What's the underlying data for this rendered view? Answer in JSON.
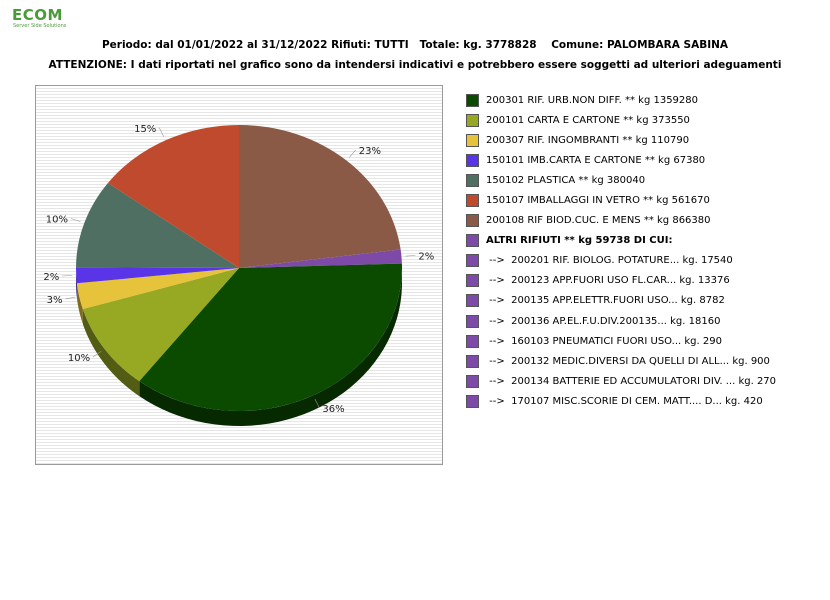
{
  "logo": {
    "text": "ECOM",
    "sub": "Server Side Solutions"
  },
  "header": {
    "line1": "Periodo: dal 01/01/2022 al 31/12/2022 Rifiuti: TUTTI   Totale: kg. 3778828    Comune: PALOMBARA SABINA",
    "line2": "ATTENZIONE: I dati riportati nel grafico sono da intendersi indicativi e potrebbero essere soggetti ad ulteriori adeguamenti"
  },
  "chart_data": {
    "type": "pie",
    "title": "",
    "start_angle_deg": 90,
    "direction": "clockwise",
    "slices": [
      {
        "label": "200108 RIF BIOD.CUC. E MENS ** kg 866380",
        "value": 866380,
        "pct_label": "23%",
        "color": "#8b5a46"
      },
      {
        "label": "ALTRI RIFIUTI ** kg 59738 DI CUI:",
        "value": 59738,
        "pct_label": "2%",
        "color": "#7d4aa8"
      },
      {
        "label": "200301 RIF. URB.NON DIFF. ** kg 1359280",
        "value": 1359280,
        "pct_label": "36%",
        "color": "#0b4b00"
      },
      {
        "label": "200101 CARTA E CARTONE ** kg 373550",
        "value": 373550,
        "pct_label": "10%",
        "color": "#97a823"
      },
      {
        "label": "200307 RIF. INGOMBRANTI ** kg 110790",
        "value": 110790,
        "pct_label": "3%",
        "color": "#e6c33a"
      },
      {
        "label": "150101 IMB.CARTA E CARTONE ** kg 67380",
        "value": 67380,
        "pct_label": "2%",
        "color": "#5a35e8"
      },
      {
        "label": "150102 PLASTICA ** kg 380040",
        "value": 380040,
        "pct_label": "10%",
        "color": "#4f6f62"
      },
      {
        "label": "150107 IMBALLAGGI IN VETRO ** kg 561670",
        "value": 561670,
        "pct_label": "15%",
        "color": "#c04a2e"
      }
    ]
  },
  "legend": [
    {
      "text": "200301 RIF. URB.NON DIFF. ** kg 1359280",
      "color": "#0b4b00",
      "bold": false
    },
    {
      "text": "200101 CARTA E CARTONE ** kg 373550",
      "color": "#97a823",
      "bold": false
    },
    {
      "text": "200307 RIF. INGOMBRANTI ** kg 110790",
      "color": "#e6c33a",
      "bold": false
    },
    {
      "text": "150101 IMB.CARTA E CARTONE ** kg 67380",
      "color": "#5a35e8",
      "bold": false
    },
    {
      "text": "150102 PLASTICA ** kg 380040",
      "color": "#4f6f62",
      "bold": false
    },
    {
      "text": "150107 IMBALLAGGI IN VETRO ** kg 561670",
      "color": "#c04a2e",
      "bold": false
    },
    {
      "text": "200108 RIF BIOD.CUC. E MENS ** kg 866380",
      "color": "#8b5a46",
      "bold": false
    },
    {
      "text": "ALTRI RIFIUTI ** kg 59738 DI CUI:",
      "color": "#7d4aa8",
      "bold": true
    },
    {
      "text": " -->  200201 RIF. BIOLOG. POTATURE... kg. 17540",
      "color": "#7d4aa8",
      "bold": false
    },
    {
      "text": " -->  200123 APP.FUORI USO FL.CAR... kg. 13376",
      "color": "#7d4aa8",
      "bold": false
    },
    {
      "text": " -->  200135 APP.ELETTR.FUORI USO... kg. 8782",
      "color": "#7d4aa8",
      "bold": false
    },
    {
      "text": " -->  200136 AP.EL.F.U.DIV.200135... kg. 18160",
      "color": "#7d4aa8",
      "bold": false
    },
    {
      "text": " -->  160103 PNEUMATICI FUORI USO... kg. 290",
      "color": "#7d4aa8",
      "bold": false
    },
    {
      "text": " -->  200132 MEDIC.DIVERSI DA QUELLI DI ALL... kg. 900",
      "color": "#7d4aa8",
      "bold": false
    },
    {
      "text": " -->  200134 BATTERIE ED ACCUMULATORI DIV. ... kg. 270",
      "color": "#7d4aa8",
      "bold": false
    },
    {
      "text": " -->  170107 MISC.SCORIE DI CEM. MATT.... D... kg. 420",
      "color": "#7d4aa8",
      "bold": false
    }
  ]
}
